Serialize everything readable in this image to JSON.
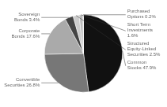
{
  "chart_data": {
    "type": "pie",
    "categories": [
      "Common\nStocks 47.9%",
      "Convertible\nSecurities 26.8%",
      "Corporate\nBonds 17.6%",
      "Sovereign\nBonds 3.4%",
      "Structured\nEquity-Linked\nSecurities 2.5%",
      "Short Term\nInvestments\n1.6%",
      "Purchased\nOptions 0.2%"
    ],
    "values": [
      47.9,
      26.8,
      17.6,
      3.4,
      2.5,
      1.6,
      0.2
    ],
    "colors": [
      "#111111",
      "#777777",
      "#aaaaaa",
      "#444444",
      "#cccccc",
      "#bbbbbb",
      "#dddddd"
    ]
  }
}
